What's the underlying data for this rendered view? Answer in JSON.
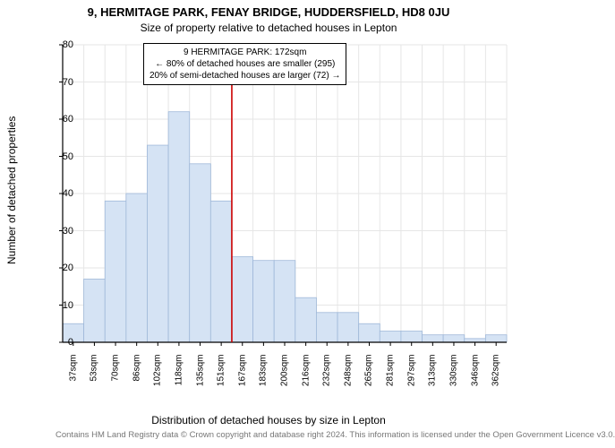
{
  "title_line1": "9, HERMITAGE PARK, FENAY BRIDGE, HUDDERSFIELD, HD8 0JU",
  "title_line2": "Size of property relative to detached houses in Lepton",
  "y_axis_label": "Number of detached properties",
  "x_axis_label": "Distribution of detached houses by size in Lepton",
  "footer_text": "Contains HM Land Registry data © Crown copyright and database right 2024. This information is licensed under the Open Government Licence v3.0.",
  "info_box": {
    "line1": "9 HERMITAGE PARK: 172sqm",
    "line2": "← 80% of detached houses are smaller (295)",
    "line3": "20% of semi-detached houses are larger (72) →"
  },
  "chart": {
    "type": "histogram",
    "ylim": [
      0,
      80
    ],
    "ytick_step": 10,
    "x_categories": [
      "37sqm",
      "53sqm",
      "70sqm",
      "86sqm",
      "102sqm",
      "118sqm",
      "135sqm",
      "151sqm",
      "167sqm",
      "183sqm",
      "200sqm",
      "216sqm",
      "232sqm",
      "248sqm",
      "265sqm",
      "281sqm",
      "297sqm",
      "313sqm",
      "330sqm",
      "346sqm",
      "362sqm"
    ],
    "values": [
      5,
      17,
      38,
      40,
      53,
      62,
      48,
      38,
      23,
      22,
      22,
      12,
      8,
      8,
      5,
      3,
      3,
      2,
      2,
      1,
      2
    ],
    "bar_fill": "#d5e3f4",
    "bar_stroke": "#9fb8d9",
    "grid_color": "#e6e6e6",
    "axis_color": "#000000",
    "marker_x_index": 8,
    "marker_color": "#cc0000",
    "background_color": "#ffffff",
    "tick_fontsize": 11,
    "label_fontsize": 12,
    "title_fontsize": 13
  }
}
